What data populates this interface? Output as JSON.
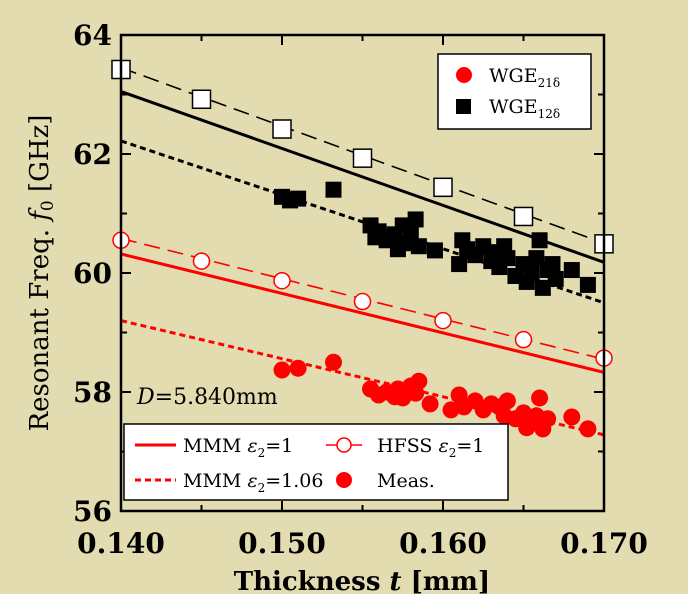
{
  "chart_data": {
    "type": "scatter",
    "xlabel": "Thickness t [mm]",
    "ylabel": "Resonant Freq. f0 [GHz]",
    "xlim": [
      0.14,
      0.17
    ],
    "ylim": [
      56,
      64
    ],
    "xticks": [
      "0.140",
      "0.150",
      "0.160",
      "0.170"
    ],
    "yticks": [
      "56",
      "58",
      "60",
      "62",
      "64"
    ],
    "grid": false,
    "annotation": "D=5.840mm",
    "legend_top": {
      "placement": "top-right",
      "entries": [
        {
          "label": "WGE",
          "sub": "21δ",
          "marker": "circle",
          "color": "#ff0000"
        },
        {
          "label": "WGE",
          "sub": "12δ",
          "marker": "square",
          "color": "#000000"
        }
      ]
    },
    "legend_bottom": {
      "placement": "bottom-left",
      "entries": [
        {
          "label": "MMM ε2=1",
          "prefix": "MMM ",
          "eps_sub": "2",
          "suffix": "=1",
          "style": "solid-red"
        },
        {
          "label": "HFSS ε2=1",
          "prefix": "HFSS ",
          "eps_sub": "2",
          "suffix": "=1",
          "style": "open-circle-dashed-red"
        },
        {
          "label": "MMM ε2=1.06",
          "prefix": "MMM ",
          "eps_sub": "2",
          "suffix": "=1.06",
          "style": "dotted-red"
        },
        {
          "label": "Meas.",
          "prefix": "Meas.",
          "eps_sub": "",
          "suffix": "",
          "style": "filled-red-circle"
        }
      ]
    },
    "lines": [
      {
        "name": "MMM ε2=1 WGE12δ",
        "color": "#000000",
        "dash": "solid",
        "x": [
          0.14,
          0.17
        ],
        "y": [
          63.05,
          60.18
        ]
      },
      {
        "name": "MMM ε2=1.06 WGE12δ",
        "color": "#000000",
        "dash": "dotted",
        "x": [
          0.14,
          0.17
        ],
        "y": [
          62.22,
          59.5
        ]
      },
      {
        "name": "HFSS ε2=1 WGE12δ",
        "color": "#000000",
        "dash": "dashed",
        "x": [
          0.14,
          0.17
        ],
        "y": [
          63.45,
          60.5
        ]
      },
      {
        "name": "MMM ε2=1 WGE21δ",
        "color": "#ff0000",
        "dash": "solid",
        "x": [
          0.14,
          0.17
        ],
        "y": [
          60.32,
          58.33
        ]
      },
      {
        "name": "MMM ε2=1.06 WGE21δ",
        "color": "#ff0000",
        "dash": "dotted",
        "x": [
          0.14,
          0.17
        ],
        "y": [
          59.2,
          57.28
        ]
      },
      {
        "name": "HFSS ε2=1 WGE21δ",
        "color": "#ff0000",
        "dash": "dashed",
        "x": [
          0.14,
          0.17
        ],
        "y": [
          60.58,
          58.55
        ]
      }
    ],
    "hfss_points": [
      {
        "mode": "WGE12δ",
        "marker": "open-square",
        "color": "#000000",
        "x": [
          0.14,
          0.145,
          0.15,
          0.155,
          0.16,
          0.165,
          0.17
        ],
        "y": [
          63.42,
          62.92,
          62.42,
          61.93,
          61.44,
          60.95,
          60.49
        ]
      },
      {
        "mode": "WGE21δ",
        "marker": "open-circle",
        "color": "#ff0000",
        "x": [
          0.14,
          0.145,
          0.15,
          0.155,
          0.16,
          0.165,
          0.17
        ],
        "y": [
          60.55,
          60.2,
          59.87,
          59.52,
          59.2,
          58.88,
          58.57
        ]
      }
    ],
    "measured": [
      {
        "mode": "WGE12δ",
        "marker": "filled-square",
        "color": "#000000",
        "x": [
          0.15,
          0.1505,
          0.151,
          0.1532,
          0.1555,
          0.1558,
          0.156,
          0.1565,
          0.157,
          0.1572,
          0.1575,
          0.1578,
          0.158,
          0.1583,
          0.1585,
          0.1595,
          0.161,
          0.1612,
          0.1615,
          0.162,
          0.1625,
          0.163,
          0.1632,
          0.1635,
          0.1638,
          0.164,
          0.1645,
          0.165,
          0.1652,
          0.1655,
          0.1658,
          0.166,
          0.1662,
          0.1665,
          0.1668,
          0.167,
          0.168,
          0.169
        ],
        "y": [
          61.28,
          61.22,
          61.25,
          61.4,
          60.8,
          60.6,
          60.7,
          60.55,
          60.65,
          60.4,
          60.8,
          60.5,
          60.65,
          60.9,
          60.45,
          60.38,
          60.15,
          60.55,
          60.4,
          60.3,
          60.45,
          60.2,
          60.35,
          60.1,
          60.45,
          60.25,
          59.95,
          60.15,
          59.85,
          60.0,
          60.25,
          60.55,
          59.75,
          60.05,
          60.15,
          59.9,
          60.05,
          59.8
        ]
      },
      {
        "mode": "WGE21δ",
        "marker": "filled-circle",
        "color": "#ff0000",
        "x": [
          0.15,
          0.151,
          0.1532,
          0.1555,
          0.156,
          0.1565,
          0.157,
          0.1572,
          0.1575,
          0.158,
          0.1583,
          0.1585,
          0.1592,
          0.1605,
          0.161,
          0.1613,
          0.162,
          0.1625,
          0.163,
          0.1635,
          0.1638,
          0.164,
          0.1645,
          0.165,
          0.1652,
          0.1655,
          0.1658,
          0.166,
          0.1662,
          0.1665,
          0.168,
          0.169
        ],
        "y": [
          58.37,
          58.4,
          58.5,
          58.05,
          57.95,
          58.0,
          57.92,
          58.05,
          57.9,
          58.1,
          57.98,
          58.18,
          57.8,
          57.7,
          57.95,
          57.75,
          57.85,
          57.7,
          57.8,
          57.75,
          57.6,
          57.85,
          57.55,
          57.65,
          57.4,
          57.5,
          57.6,
          57.9,
          57.38,
          57.55,
          57.58,
          57.38
        ]
      }
    ]
  }
}
